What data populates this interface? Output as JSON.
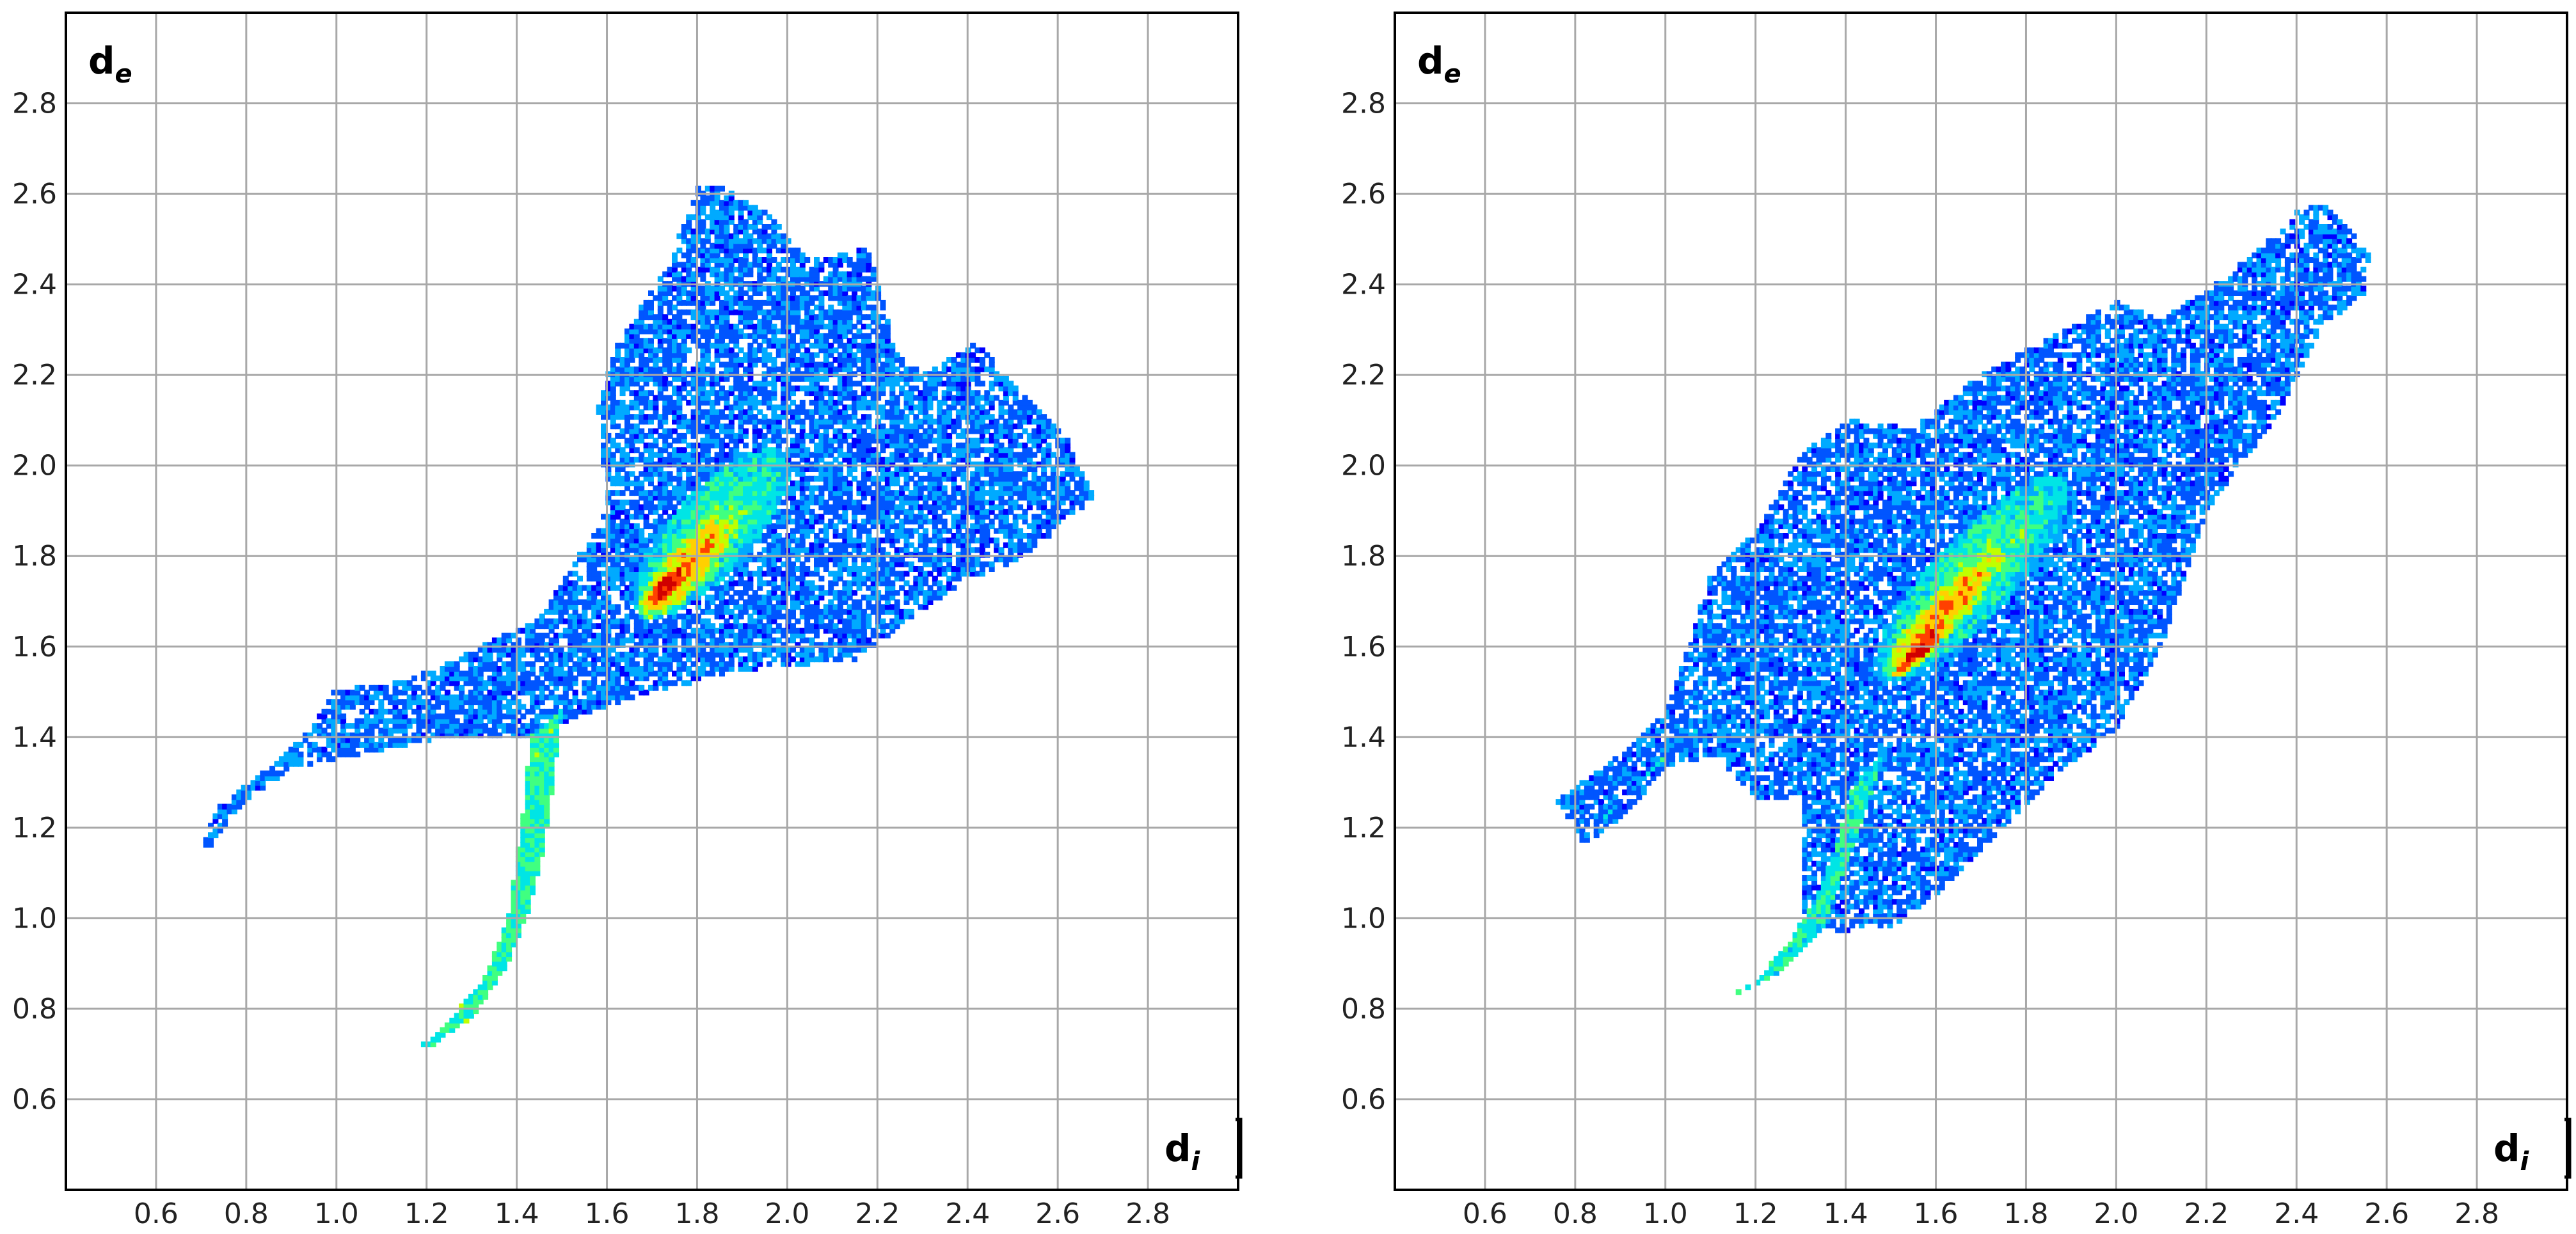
{
  "chart_data": [
    {
      "type": "heatmap",
      "xlabel": "d",
      "xlabel_sub": "i",
      "ylabel": "d",
      "ylabel_sub": "e",
      "xlim": [
        0.4,
        3.0
      ],
      "ylim": [
        0.4,
        3.0
      ],
      "x_ticks": [
        "0.6",
        "0.8",
        "1.0",
        "1.2",
        "1.4",
        "1.6",
        "1.8",
        "2.0",
        "2.2",
        "2.4",
        "2.6",
        "2.8"
      ],
      "y_ticks": [
        "0.6",
        "0.8",
        "1.0",
        "1.2",
        "1.4",
        "1.6",
        "1.8",
        "2.0",
        "2.2",
        "2.4",
        "2.6",
        "2.8"
      ],
      "grid": true,
      "colormap": [
        "#0000ff",
        "#0055ff",
        "#00aaff",
        "#00e5e5",
        "#40ff80",
        "#c0ff00",
        "#ffd000",
        "#ff4000",
        "#d00000"
      ],
      "regions": [
        {
          "shape": "polygon",
          "points": [
            [
              0.7,
              1.16
            ],
            [
              0.73,
              1.24
            ],
            [
              0.85,
              1.33
            ],
            [
              0.95,
              1.43
            ],
            [
              1.0,
              1.51
            ],
            [
              1.15,
              1.52
            ],
            [
              1.45,
              1.66
            ],
            [
              1.6,
              1.9
            ],
            [
              1.58,
              2.13
            ],
            [
              1.62,
              2.26
            ],
            [
              1.74,
              2.45
            ],
            [
              1.8,
              2.62
            ],
            [
              1.86,
              2.61
            ],
            [
              1.95,
              2.56
            ],
            [
              2.05,
              2.45
            ],
            [
              2.18,
              2.48
            ],
            [
              2.24,
              2.25
            ],
            [
              2.3,
              2.2
            ],
            [
              2.42,
              2.27
            ],
            [
              2.5,
              2.18
            ],
            [
              2.62,
              2.06
            ],
            [
              2.68,
              1.93
            ],
            [
              2.6,
              1.86
            ],
            [
              2.5,
              1.78
            ],
            [
              2.4,
              1.75
            ],
            [
              2.3,
              1.68
            ],
            [
              2.15,
              1.57
            ],
            [
              1.95,
              1.55
            ],
            [
              1.7,
              1.5
            ],
            [
              1.55,
              1.45
            ],
            [
              1.43,
              1.4
            ],
            [
              1.25,
              1.4
            ],
            [
              1.05,
              1.36
            ],
            [
              0.9,
              1.33
            ],
            [
              0.8,
              1.26
            ],
            [
              0.72,
              1.16
            ]
          ],
          "density": 0.2
        },
        {
          "shape": "polygon",
          "points": [
            [
              1.18,
              0.71
            ],
            [
              1.24,
              0.76
            ],
            [
              1.33,
              0.87
            ],
            [
              1.38,
              1.0
            ],
            [
              1.41,
              1.2
            ],
            [
              1.43,
              1.4
            ],
            [
              1.5,
              1.46
            ],
            [
              1.48,
              1.3
            ],
            [
              1.46,
              1.15
            ],
            [
              1.42,
              1.0
            ],
            [
              1.38,
              0.9
            ],
            [
              1.3,
              0.78
            ],
            [
              1.2,
              0.71
            ]
          ],
          "density": 0.45
        },
        {
          "shape": "ellipse",
          "center": [
            1.83,
            1.85
          ],
          "rx": 0.24,
          "ry": 0.09,
          "angle_deg": 48,
          "density": 0.5
        },
        {
          "shape": "ellipse",
          "center": [
            1.78,
            1.78
          ],
          "rx": 0.15,
          "ry": 0.05,
          "angle_deg": 48,
          "density": 0.78
        },
        {
          "shape": "ellipse",
          "center": [
            1.74,
            1.74
          ],
          "rx": 0.08,
          "ry": 0.025,
          "angle_deg": 48,
          "density": 0.95
        }
      ]
    },
    {
      "type": "heatmap",
      "xlabel": "d",
      "xlabel_sub": "i",
      "ylabel": "d",
      "ylabel_sub": "e",
      "xlim": [
        0.4,
        3.0
      ],
      "ylim": [
        0.4,
        3.0
      ],
      "x_ticks": [
        "0.6",
        "0.8",
        "1.0",
        "1.2",
        "1.4",
        "1.6",
        "1.8",
        "2.0",
        "2.2",
        "2.4",
        "2.6",
        "2.8"
      ],
      "y_ticks": [
        "0.6",
        "0.8",
        "1.0",
        "1.2",
        "1.4",
        "1.6",
        "1.8",
        "2.0",
        "2.2",
        "2.4",
        "2.6",
        "2.8"
      ],
      "grid": true,
      "colormap": [
        "#0000ff",
        "#0055ff",
        "#00aaff",
        "#00e5e5",
        "#40ff80",
        "#c0ff00",
        "#ffd000",
        "#ff4000",
        "#d00000"
      ],
      "regions": [
        {
          "shape": "polygon",
          "points": [
            [
              0.76,
              1.26
            ],
            [
              0.9,
              1.36
            ],
            [
              1.0,
              1.46
            ],
            [
              1.1,
              1.76
            ],
            [
              1.2,
              1.85
            ],
            [
              1.3,
              2.02
            ],
            [
              1.4,
              2.1
            ],
            [
              1.55,
              2.08
            ],
            [
              1.7,
              2.2
            ],
            [
              1.85,
              2.28
            ],
            [
              2.0,
              2.36
            ],
            [
              2.1,
              2.32
            ],
            [
              2.25,
              2.42
            ],
            [
              2.4,
              2.56
            ],
            [
              2.46,
              2.58
            ],
            [
              2.56,
              2.47
            ],
            [
              2.55,
              2.38
            ],
            [
              2.45,
              2.3
            ],
            [
              2.35,
              2.1
            ],
            [
              2.2,
              1.9
            ],
            [
              2.1,
              1.6
            ],
            [
              2.0,
              1.42
            ],
            [
              1.85,
              1.3
            ],
            [
              1.7,
              1.15
            ],
            [
              1.6,
              1.05
            ],
            [
              1.5,
              0.98
            ],
            [
              1.4,
              0.97
            ],
            [
              1.3,
              0.98
            ],
            [
              1.3,
              1.05
            ],
            [
              1.3,
              1.26
            ],
            [
              1.2,
              1.26
            ],
            [
              1.1,
              1.36
            ],
            [
              1.0,
              1.33
            ],
            [
              0.9,
              1.22
            ],
            [
              0.82,
              1.16
            ],
            [
              0.78,
              1.22
            ]
          ],
          "density": 0.2
        },
        {
          "shape": "polygon",
          "points": [
            [
              1.15,
              0.83
            ],
            [
              1.25,
              0.88
            ],
            [
              1.35,
              0.98
            ],
            [
              1.45,
              1.25
            ],
            [
              1.48,
              1.36
            ],
            [
              1.42,
              1.3
            ],
            [
              1.35,
              1.08
            ],
            [
              1.28,
              0.95
            ],
            [
              1.2,
              0.86
            ]
          ],
          "density": 0.42
        },
        {
          "shape": "polygon",
          "points": [
            [
              0.82,
              1.17
            ],
            [
              0.92,
              1.28
            ],
            [
              1.05,
              1.4
            ],
            [
              1.15,
              1.48
            ],
            [
              1.1,
              1.44
            ],
            [
              0.98,
              1.34
            ],
            [
              0.88,
              1.24
            ]
          ],
          "density": 0.42
        },
        {
          "shape": "ellipse",
          "center": [
            1.68,
            1.75
          ],
          "rx": 0.3,
          "ry": 0.09,
          "angle_deg": 47,
          "density": 0.5
        },
        {
          "shape": "ellipse",
          "center": [
            1.62,
            1.68
          ],
          "rx": 0.19,
          "ry": 0.045,
          "angle_deg": 47,
          "density": 0.78
        },
        {
          "shape": "ellipse",
          "center": [
            1.57,
            1.6
          ],
          "rx": 0.09,
          "ry": 0.022,
          "angle_deg": 47,
          "density": 0.95
        }
      ]
    }
  ]
}
